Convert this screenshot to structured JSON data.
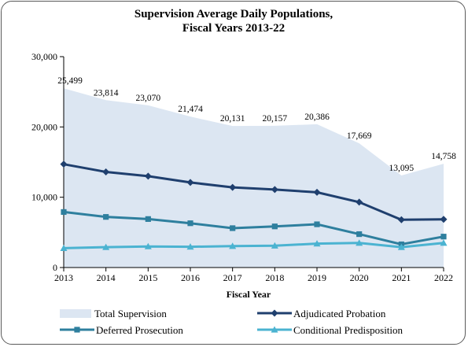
{
  "chart_data": {
    "type": "line",
    "title_line1": "Supervision Average Daily Populations,",
    "title_line2": "Fiscal Years 2013-22",
    "xlabel": "Fiscal Year",
    "ylabel": "",
    "categories": [
      "2013",
      "2014",
      "2015",
      "2016",
      "2017",
      "2018",
      "2019",
      "2020",
      "2021",
      "2022"
    ],
    "ylim": [
      0,
      30000
    ],
    "yticks": [
      0,
      10000,
      20000,
      30000
    ],
    "ytick_labels": [
      "0",
      "10,000",
      "20,000",
      "30,000"
    ],
    "grid": false,
    "legend_position": "bottom",
    "series": [
      {
        "name": "Total Supervision",
        "kind": "area",
        "color": "#dce6f2",
        "values": [
          25499,
          23814,
          23070,
          21474,
          20131,
          20157,
          20386,
          17669,
          13095,
          14758
        ],
        "labels": [
          "25,499",
          "23,814",
          "23,070",
          "21,474",
          "20,131",
          "20,157",
          "20,386",
          "17,669",
          "13,095",
          "14,758"
        ]
      },
      {
        "name": "Adjudicated Probation",
        "kind": "line",
        "marker": "diamond",
        "color": "#1f3f6e",
        "values": [
          14700,
          13600,
          13000,
          12100,
          11400,
          11100,
          10700,
          9300,
          6800,
          6850
        ]
      },
      {
        "name": "Deferred Prosecution",
        "kind": "line",
        "marker": "square",
        "color": "#2e7f9e",
        "values": [
          7900,
          7200,
          6900,
          6300,
          5600,
          5850,
          6150,
          4750,
          3300,
          4400
        ]
      },
      {
        "name": "Conditional Predisposition",
        "kind": "line",
        "marker": "triangle",
        "color": "#4bb3d1",
        "values": [
          2750,
          2900,
          3000,
          2950,
          3050,
          3100,
          3400,
          3500,
          2900,
          3500
        ]
      }
    ]
  }
}
